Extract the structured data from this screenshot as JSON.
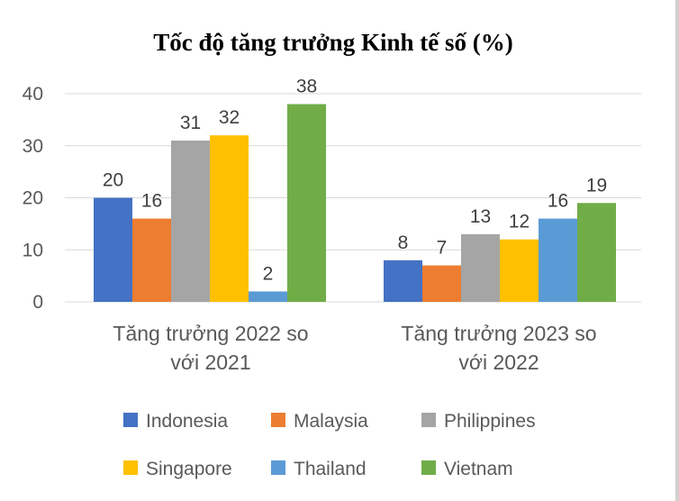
{
  "chart_data": {
    "type": "bar",
    "title": "Tốc độ tăng trưởng Kinh tế số (%)",
    "xlabel": "",
    "ylabel": "",
    "ylim": [
      0,
      40
    ],
    "yticks": [
      "0",
      "10",
      "20",
      "30",
      "40"
    ],
    "grid": true,
    "legend_position": "bottom",
    "categories": [
      {
        "line1": "Tăng trưởng 2022 so",
        "line2": "với 2021"
      },
      {
        "line1": "Tăng trưởng 2023 so",
        "line2": "với 2022"
      }
    ],
    "series": [
      {
        "name": "Indonesia",
        "color": "#4472c4",
        "values": [
          20,
          8
        ]
      },
      {
        "name": "Malaysia",
        "color": "#ed7d31",
        "values": [
          16,
          7
        ]
      },
      {
        "name": "Philippines",
        "color": "#a5a5a5",
        "values": [
          31,
          13
        ]
      },
      {
        "name": "Singapore",
        "color": "#ffc000",
        "values": [
          32,
          12
        ]
      },
      {
        "name": "Thailand",
        "color": "#5b9bd5",
        "values": [
          2,
          16
        ]
      },
      {
        "name": "Vietnam",
        "color": "#70ad47",
        "values": [
          38,
          19
        ]
      }
    ]
  }
}
